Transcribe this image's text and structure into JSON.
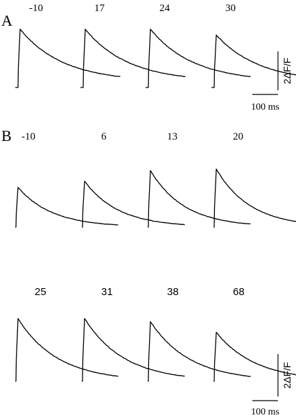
{
  "chart_data": [
    {
      "type": "line",
      "panel_label": "A",
      "title": "",
      "xlabel": "",
      "ylabel": "",
      "label_font": "serif",
      "series": [
        {
          "name": "-10",
          "peak": 3.0,
          "tau": 0.78
        },
        {
          "name": "17",
          "peak": 3.0,
          "tau": 0.78
        },
        {
          "name": "24",
          "peak": 3.0,
          "tau": 0.78
        },
        {
          "name": "30",
          "peak": 2.7,
          "tau": 0.78
        }
      ],
      "scale_bar": {
        "y_label": "2ΔF/F",
        "y_value": 2,
        "x_label": "100 ms",
        "x_value": 100
      }
    },
    {
      "type": "line",
      "panel_label": "B",
      "title": "",
      "xlabel": "",
      "ylabel": "",
      "label_font": "mixed",
      "series": [
        {
          "name": "-10",
          "peak": 2.6,
          "tau": 0.62,
          "row": 0
        },
        {
          "name": "6",
          "peak": 3.0,
          "tau": 0.62,
          "row": 0
        },
        {
          "name": "13",
          "peak": 3.7,
          "tau": 0.62,
          "row": 0
        },
        {
          "name": "20",
          "peak": 3.8,
          "tau": 0.62,
          "row": 0
        },
        {
          "name": "25",
          "peak": 4.1,
          "tau": 0.72,
          "row": 1
        },
        {
          "name": "31",
          "peak": 4.1,
          "tau": 0.72,
          "row": 1
        },
        {
          "name": "38",
          "peak": 3.9,
          "tau": 0.72,
          "row": 1
        },
        {
          "name": "68",
          "peak": 3.2,
          "tau": 0.72,
          "row": 1
        }
      ],
      "scale_bar": {
        "y_label": "2ΔF/F",
        "y_value": 2,
        "x_label": "100 ms",
        "x_value": 100
      }
    }
  ]
}
